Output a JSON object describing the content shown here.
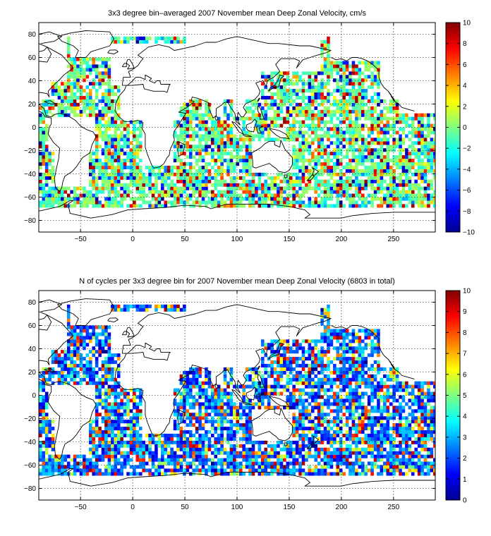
{
  "chart_data": [
    {
      "type": "heatmap",
      "title": "3x3 degree bin–averaged 2007 November mean Deep Zonal Velocity, cm/s",
      "xlabel": "",
      "ylabel": "",
      "xlim": [
        -90,
        290
      ],
      "ylim": [
        -90,
        90
      ],
      "x_ticks": [
        -50,
        0,
        50,
        100,
        150,
        200,
        250
      ],
      "y_ticks": [
        80,
        60,
        40,
        20,
        0,
        -20,
        -40,
        -60,
        -80
      ],
      "grid": true,
      "colorbar": {
        "min": -10,
        "max": 10,
        "ticks": [
          10,
          8,
          6,
          4,
          2,
          0,
          -2,
          -4,
          -6,
          -8,
          -10
        ],
        "colormap": "jet",
        "placement": "right"
      },
      "bin_size_deg": 3
    },
    {
      "type": "heatmap",
      "title": "N of cycles per 3x3 degree bin for 2007 November mean Deep Zonal Velocity (6803 in total)",
      "xlabel": "",
      "ylabel": "",
      "xlim": [
        -90,
        290
      ],
      "ylim": [
        -90,
        90
      ],
      "x_ticks": [
        -50,
        0,
        50,
        100,
        150,
        200,
        250
      ],
      "y_ticks": [
        80,
        60,
        40,
        20,
        0,
        -20,
        -40,
        -60,
        -80
      ],
      "grid": true,
      "colorbar": {
        "min": 0,
        "max": 10,
        "ticks": [
          10,
          9,
          8,
          7,
          6,
          5,
          4,
          3,
          2,
          1,
          0
        ],
        "colormap": "jet",
        "placement": "right"
      },
      "bin_size_deg": 3
    }
  ],
  "colors": {
    "background": "#ffffff",
    "axes": "#000000"
  }
}
